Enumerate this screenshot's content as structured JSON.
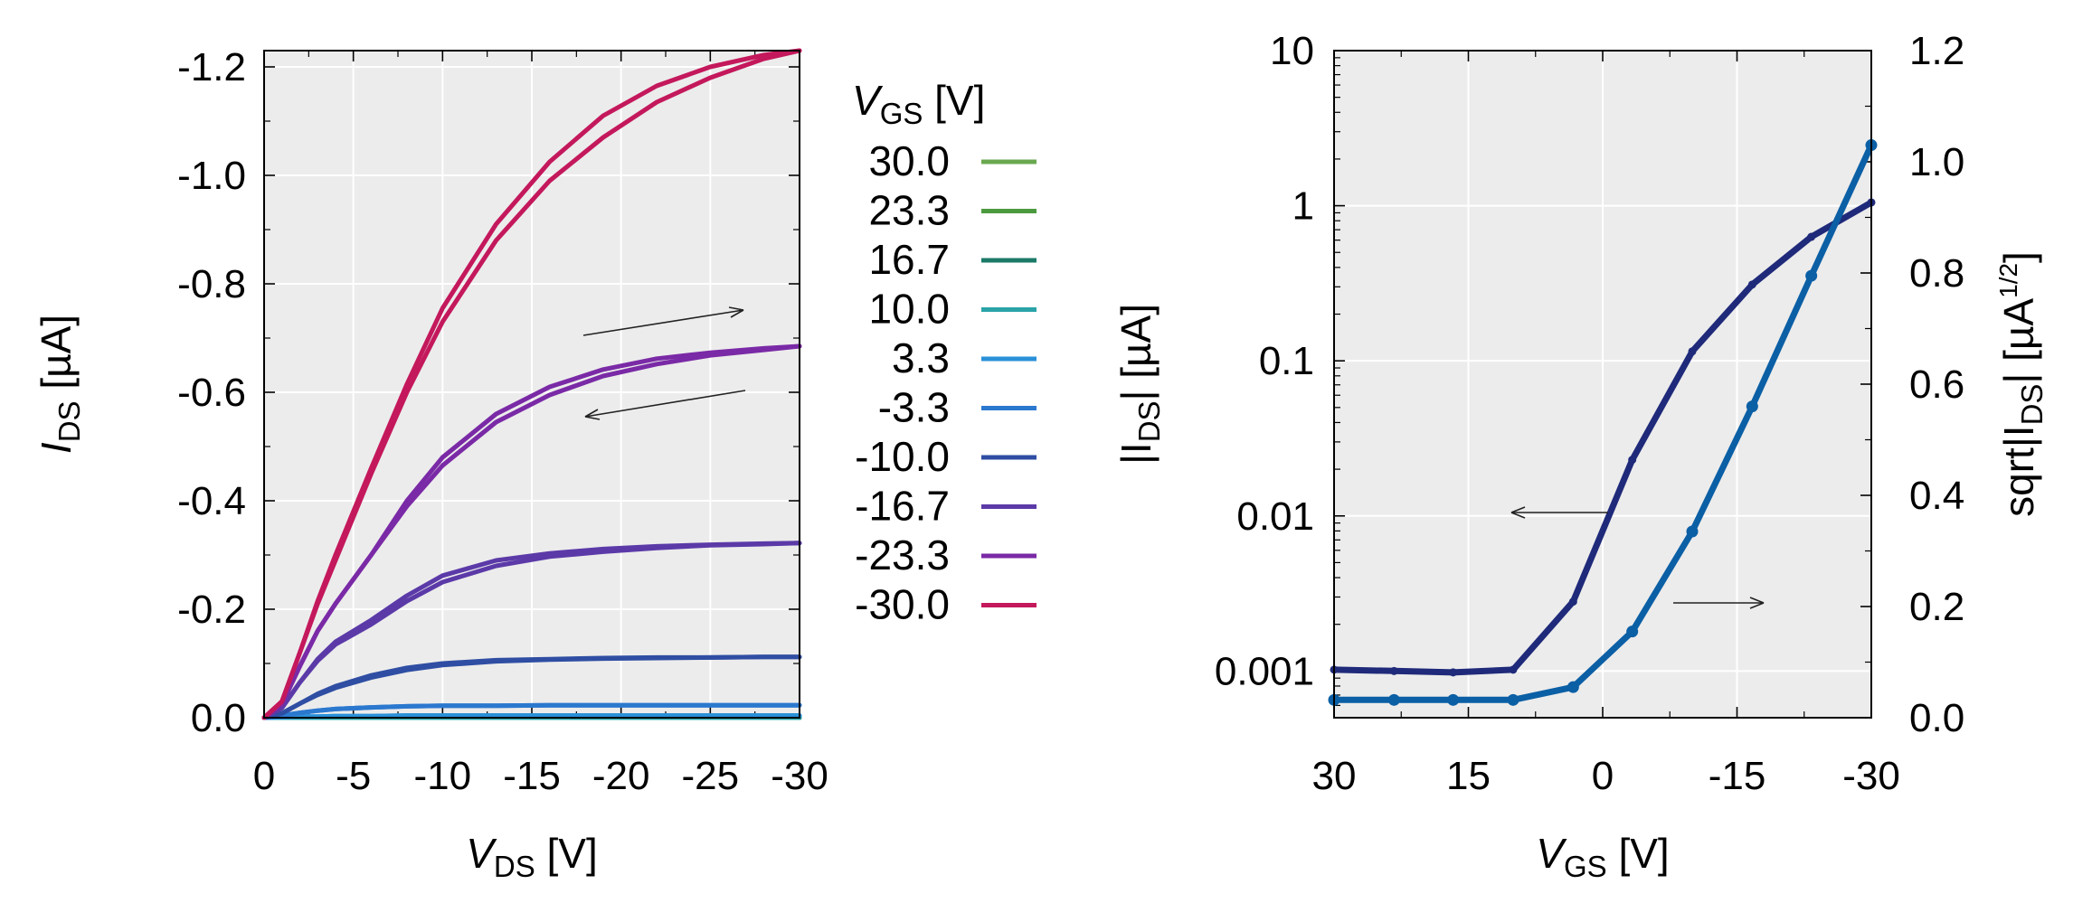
{
  "chart_data": [
    {
      "type": "line",
      "title": "",
      "xlabel": {
        "main": "V",
        "sub": "DS",
        "unit": " [V]"
      },
      "ylabel": {
        "main": "I",
        "sub": "DS",
        "unit": " [µA]"
      },
      "xlim": [
        0,
        -30
      ],
      "ylim": [
        0,
        -1.23
      ],
      "xticks": [
        0,
        -5,
        -10,
        -15,
        -20,
        -25,
        -30
      ],
      "xtick_labels": [
        "0",
        "-5",
        "-10",
        "-15",
        "-20",
        "-25",
        "-30"
      ],
      "yticks": [
        0,
        -0.2,
        -0.4,
        -0.6,
        -0.8,
        -1.0,
        -1.2
      ],
      "ytick_labels": [
        "0.0",
        "-0.2",
        "-0.4",
        "-0.6",
        "-0.8",
        "-1.0",
        "-1.2"
      ],
      "grid": true,
      "legend": {
        "position": "right-outside",
        "title": {
          "main": "V",
          "sub": "GS",
          "unit": " [V]"
        }
      },
      "annotations": [
        "arrow forward sweep (toward -30 V)",
        "arrow reverse sweep (toward 0 V)"
      ],
      "x": [
        0,
        -1,
        -2,
        -3,
        -4,
        -6,
        -8,
        -10,
        -13,
        -16,
        -19,
        -22,
        -25,
        -28,
        -30
      ],
      "series": [
        {
          "name": "30.0",
          "color": "#6aa84f",
          "forward": [
            0,
            0,
            0,
            0,
            0,
            0,
            0,
            0,
            0,
            0,
            0,
            0,
            0,
            0,
            0
          ],
          "reverse": [
            0,
            0,
            0,
            0,
            0,
            0,
            0,
            0,
            0,
            0,
            0,
            0,
            0,
            0,
            0
          ]
        },
        {
          "name": "23.3",
          "color": "#4c9a3e",
          "forward": [
            0,
            0,
            0,
            0,
            0,
            0,
            0,
            0,
            0,
            0,
            0,
            0,
            0,
            0,
            0
          ],
          "reverse": [
            0,
            0,
            0,
            0,
            0,
            0,
            0,
            0,
            0,
            0,
            0,
            0,
            0,
            0,
            0
          ]
        },
        {
          "name": "16.7",
          "color": "#1b7a68",
          "forward": [
            0,
            0,
            0,
            0,
            0,
            0,
            0,
            0,
            0,
            0,
            0,
            0,
            0,
            0,
            0
          ],
          "reverse": [
            0,
            0,
            0,
            0,
            0,
            0,
            0,
            0,
            0,
            0,
            0,
            0,
            0,
            0,
            0
          ]
        },
        {
          "name": "10.0",
          "color": "#2aa3a8",
          "forward": [
            0,
            0,
            0,
            0,
            0,
            0,
            0,
            0,
            0,
            0,
            0,
            0,
            0,
            0,
            0
          ],
          "reverse": [
            0,
            0,
            0,
            0,
            0,
            0,
            0,
            0,
            0,
            0,
            0,
            0,
            0,
            0,
            0
          ]
        },
        {
          "name": "3.3",
          "color": "#2a90d8",
          "forward": [
            0,
            -0.001,
            -0.002,
            -0.002,
            -0.003,
            -0.003,
            -0.004,
            -0.004,
            -0.004,
            -0.004,
            -0.004,
            -0.004,
            -0.004,
            -0.004,
            -0.004
          ],
          "reverse": [
            0,
            -0.001,
            -0.002,
            -0.002,
            -0.003,
            -0.003,
            -0.004,
            -0.004,
            -0.004,
            -0.004,
            -0.004,
            -0.004,
            -0.004,
            -0.004,
            -0.004
          ]
        },
        {
          "name": "-3.3",
          "color": "#2b78cf",
          "forward": [
            0,
            -0.004,
            -0.009,
            -0.013,
            -0.016,
            -0.019,
            -0.021,
            -0.022,
            -0.022,
            -0.023,
            -0.023,
            -0.023,
            -0.023,
            -0.023,
            -0.023
          ],
          "reverse": [
            0,
            -0.004,
            -0.009,
            -0.013,
            -0.016,
            -0.019,
            -0.021,
            -0.022,
            -0.022,
            -0.023,
            -0.023,
            -0.023,
            -0.023,
            -0.023,
            -0.023
          ]
        },
        {
          "name": "-10.0",
          "color": "#2f4ea3",
          "forward": [
            0,
            -0.008,
            -0.026,
            -0.042,
            -0.055,
            -0.074,
            -0.088,
            -0.097,
            -0.104,
            -0.107,
            -0.109,
            -0.11,
            -0.111,
            -0.112,
            -0.112
          ],
          "reverse": [
            0,
            -0.008,
            -0.026,
            -0.044,
            -0.058,
            -0.078,
            -0.092,
            -0.1,
            -0.106,
            -0.108,
            -0.11,
            -0.111,
            -0.111,
            -0.112,
            -0.112
          ]
        },
        {
          "name": "-16.7",
          "color": "#5b3aa8",
          "forward": [
            0,
            -0.018,
            -0.065,
            -0.105,
            -0.135,
            -0.172,
            -0.215,
            -0.25,
            -0.28,
            -0.297,
            -0.306,
            -0.313,
            -0.318,
            -0.32,
            -0.322
          ],
          "reverse": [
            0,
            -0.018,
            -0.065,
            -0.108,
            -0.14,
            -0.18,
            -0.225,
            -0.262,
            -0.29,
            -0.303,
            -0.311,
            -0.316,
            -0.319,
            -0.321,
            -0.322
          ]
        },
        {
          "name": "-23.3",
          "color": "#7a2aa6",
          "forward": [
            0,
            -0.025,
            -0.095,
            -0.16,
            -0.21,
            -0.3,
            -0.39,
            -0.465,
            -0.545,
            -0.595,
            -0.63,
            -0.652,
            -0.668,
            -0.678,
            -0.685
          ],
          "reverse": [
            0,
            -0.025,
            -0.095,
            -0.16,
            -0.21,
            -0.3,
            -0.4,
            -0.48,
            -0.56,
            -0.61,
            -0.642,
            -0.662,
            -0.673,
            -0.681,
            -0.685
          ]
        },
        {
          "name": "-30.0",
          "color": "#c4185c",
          "forward": [
            0,
            -0.03,
            -0.12,
            -0.21,
            -0.29,
            -0.45,
            -0.6,
            -0.73,
            -0.88,
            -0.99,
            -1.07,
            -1.135,
            -1.18,
            -1.215,
            -1.23
          ],
          "reverse": [
            0,
            -0.03,
            -0.12,
            -0.215,
            -0.3,
            -0.46,
            -0.615,
            -0.755,
            -0.91,
            -1.025,
            -1.11,
            -1.165,
            -1.2,
            -1.222,
            -1.23
          ]
        }
      ]
    },
    {
      "type": "line",
      "title": "",
      "xlabel": {
        "main": "V",
        "sub": "GS",
        "unit": " [V]"
      },
      "ylabel": {
        "pre": "|I",
        "sub": "DS",
        "post": "| [µA]"
      },
      "y2label": {
        "pre": "sqrt|I",
        "sub": "DS",
        "mid": "| [µA",
        "sup": "1/2",
        "post": "]"
      },
      "xlim": [
        30,
        -30
      ],
      "ylim_log": [
        0.0005,
        10
      ],
      "y2lim": [
        0,
        1.2
      ],
      "xticks": [
        30,
        15,
        0,
        -15,
        -30
      ],
      "xtick_labels": [
        "30",
        "15",
        "0",
        "-15",
        "-30"
      ],
      "yticks": [
        0.001,
        0.01,
        0.1,
        1,
        10
      ],
      "ytick_labels": [
        "0.001",
        "0.01",
        "0.1",
        "1",
        "10"
      ],
      "y2ticks": [
        0,
        0.2,
        0.4,
        0.6,
        0.8,
        1.0,
        1.2
      ],
      "y2tick_labels": [
        "0.0",
        "0.2",
        "0.4",
        "0.6",
        "0.8",
        "1.0",
        "1.2"
      ],
      "grid": true,
      "annotations": [
        "arrow: left axis (log |I_DS|)",
        "arrow: right axis (sqrt|I_DS|)"
      ],
      "series": [
        {
          "name": "|I_DS| (left axis, log)",
          "color": "#1f2a7a",
          "x": [
            30,
            23.3,
            16.7,
            10,
            3.3,
            -3.3,
            -10,
            -16.7,
            -23.3,
            -30
          ],
          "values": [
            0.00102,
            0.001,
            0.00098,
            0.00102,
            0.0028,
            0.023,
            0.115,
            0.31,
            0.63,
            1.05
          ]
        },
        {
          "name": "sqrt|I_DS| (right axis)",
          "color": "#0b5fa5",
          "x": [
            30,
            23.3,
            16.7,
            10,
            3.3,
            -3.3,
            -10,
            -16.7,
            -23.3,
            -30
          ],
          "values": [
            0.032,
            0.032,
            0.032,
            0.032,
            0.055,
            0.155,
            0.335,
            0.56,
            0.795,
            1.03
          ]
        }
      ]
    }
  ]
}
